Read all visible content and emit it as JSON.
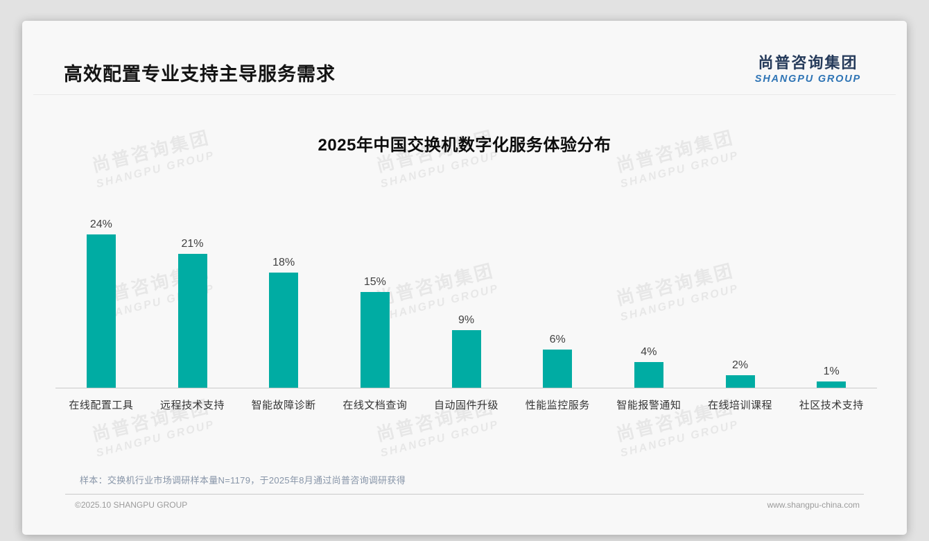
{
  "page": {
    "title": "高效配置专业支持主导服务需求",
    "logo": {
      "cn": "尚普咨询集团",
      "en": "SHANGPU GROUP"
    },
    "watermark": {
      "cn": "尚普咨询集团",
      "en": "SHANGPU GROUP"
    },
    "footer": {
      "note": "样本：交换机行业市场调研样本量N=1179，于2025年8月通过尚普咨询调研获得",
      "copyright": "©2025.10 SHANGPU GROUP",
      "website": "www.shangpu-china.com"
    }
  },
  "chart_data": {
    "type": "bar",
    "title": "2025年中国交换机数字化服务体验分布",
    "categories": [
      "在线配置工具",
      "远程技术支持",
      "智能故障诊断",
      "在线文档查询",
      "自动固件升级",
      "性能监控服务",
      "智能报警通知",
      "在线培训课程",
      "社区技术支持"
    ],
    "values": [
      24,
      21,
      18,
      15,
      9,
      6,
      4,
      2,
      1
    ],
    "value_labels": [
      "24%",
      "21%",
      "18%",
      "15%",
      "9%",
      "6%",
      "4%",
      "2%",
      "1%"
    ],
    "unit": "percent",
    "bar_color": "#00aca3",
    "ylim": [
      0,
      26
    ],
    "grid": false,
    "legend": false,
    "xlabel": "",
    "ylabel": ""
  }
}
